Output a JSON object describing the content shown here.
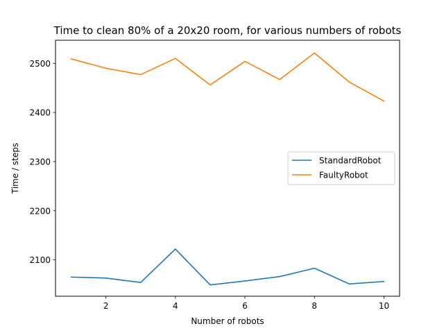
{
  "chart_data": {
    "type": "line",
    "title": "Time to clean 80% of a 20x20 room, for various numbers of robots",
    "xlabel": "Number of robots",
    "ylabel": "Time / steps",
    "xlim": [
      0.55,
      10.45
    ],
    "ylim": [
      2026,
      2547
    ],
    "xticks": [
      2,
      4,
      6,
      8,
      10
    ],
    "yticks": [
      2100,
      2200,
      2300,
      2400,
      2500
    ],
    "grid": false,
    "legend_position": "center-right",
    "x": [
      1,
      2,
      3,
      4,
      5,
      6,
      7,
      8,
      9,
      10
    ],
    "series": [
      {
        "name": "StandardRobot",
        "color": "#1f77b4",
        "values": [
          2065,
          2063,
          2054,
          2122,
          2049,
          2057,
          2066,
          2083,
          2051,
          2056
        ]
      },
      {
        "name": "FaultyRobot",
        "color": "#ff7f0e",
        "values": [
          2509,
          2490,
          2477,
          2510,
          2456,
          2504,
          2467,
          2521,
          2462,
          2423
        ]
      }
    ]
  }
}
